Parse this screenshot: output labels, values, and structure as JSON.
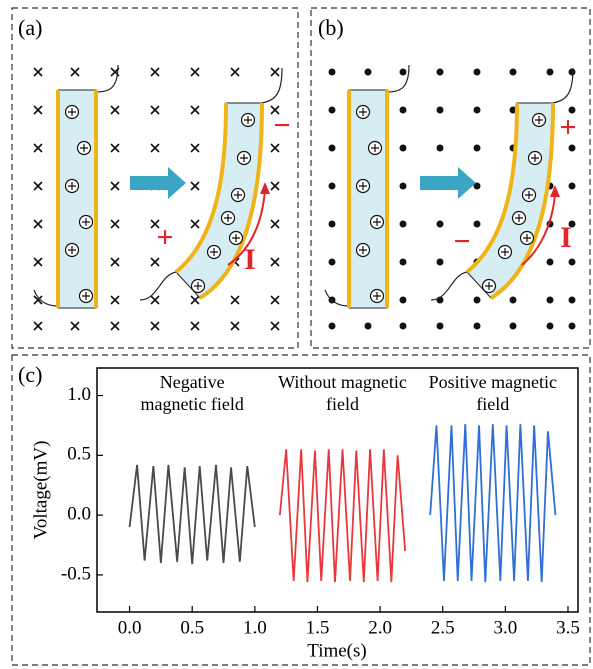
{
  "panel_a": {
    "label": "(a)",
    "plus": "+",
    "minus": "−",
    "current": "I"
  },
  "panel_b": {
    "label": "(b)",
    "plus": "+",
    "minus": "−",
    "current": "I"
  },
  "chart_data": {
    "type": "line",
    "panel_label": "(c)",
    "xlabel": "Time(s)",
    "ylabel": "Voltage(mV)",
    "xlim": [
      -0.26,
      3.58
    ],
    "ylim": [
      -0.81,
      1.23
    ],
    "xticks": [
      {
        "value": 0,
        "label": "0.0"
      },
      {
        "value": 0.5,
        "label": "0.5"
      },
      {
        "value": 1,
        "label": "1.0"
      },
      {
        "value": 1.5,
        "label": "1.5"
      },
      {
        "value": 2,
        "label": "2.0"
      },
      {
        "value": 2.5,
        "label": "2.5"
      },
      {
        "value": 3,
        "label": "3.0"
      },
      {
        "value": 3.5,
        "label": "3.5"
      }
    ],
    "yticks": [
      {
        "value": -0.5,
        "label": "-0.5"
      },
      {
        "value": 0,
        "label": "0.0"
      },
      {
        "value": 0.5,
        "label": "0.5"
      },
      {
        "value": 1,
        "label": "1.0"
      }
    ],
    "series": [
      {
        "name": "Negative magnetic field",
        "color": "#4a4a4a",
        "x": [
          0.0,
          0.06,
          0.12,
          0.19,
          0.25,
          0.31,
          0.38,
          0.44,
          0.5,
          0.56,
          0.62,
          0.69,
          0.75,
          0.81,
          0.88,
          0.94,
          1.0
        ],
        "values": [
          -0.1,
          0.42,
          -0.38,
          0.41,
          -0.4,
          0.42,
          -0.39,
          0.4,
          -0.41,
          0.41,
          -0.38,
          0.42,
          -0.4,
          0.4,
          -0.39,
          0.41,
          -0.1
        ]
      },
      {
        "name": "Without magnetic field",
        "color": "#e8383d",
        "x": [
          1.2,
          1.25,
          1.31,
          1.37,
          1.42,
          1.48,
          1.53,
          1.59,
          1.64,
          1.7,
          1.76,
          1.81,
          1.87,
          1.92,
          1.98,
          2.03,
          2.09,
          2.14,
          2.2
        ],
        "values": [
          0.0,
          0.55,
          -0.55,
          0.55,
          -0.56,
          0.54,
          -0.55,
          0.55,
          -0.56,
          0.55,
          -0.55,
          0.54,
          -0.56,
          0.55,
          -0.55,
          0.55,
          -0.56,
          0.5,
          -0.3
        ]
      },
      {
        "name": "Positive magnetic field",
        "color": "#2f6fd6",
        "x": [
          2.4,
          2.45,
          2.51,
          2.57,
          2.62,
          2.68,
          2.73,
          2.79,
          2.84,
          2.9,
          2.96,
          3.01,
          3.07,
          3.12,
          3.18,
          3.23,
          3.29,
          3.34,
          3.4
        ],
        "values": [
          0.0,
          0.75,
          -0.55,
          0.75,
          -0.55,
          0.76,
          -0.55,
          0.75,
          -0.56,
          0.76,
          -0.55,
          0.75,
          -0.55,
          0.76,
          -0.55,
          0.75,
          -0.56,
          0.7,
          0.0
        ]
      }
    ]
  }
}
